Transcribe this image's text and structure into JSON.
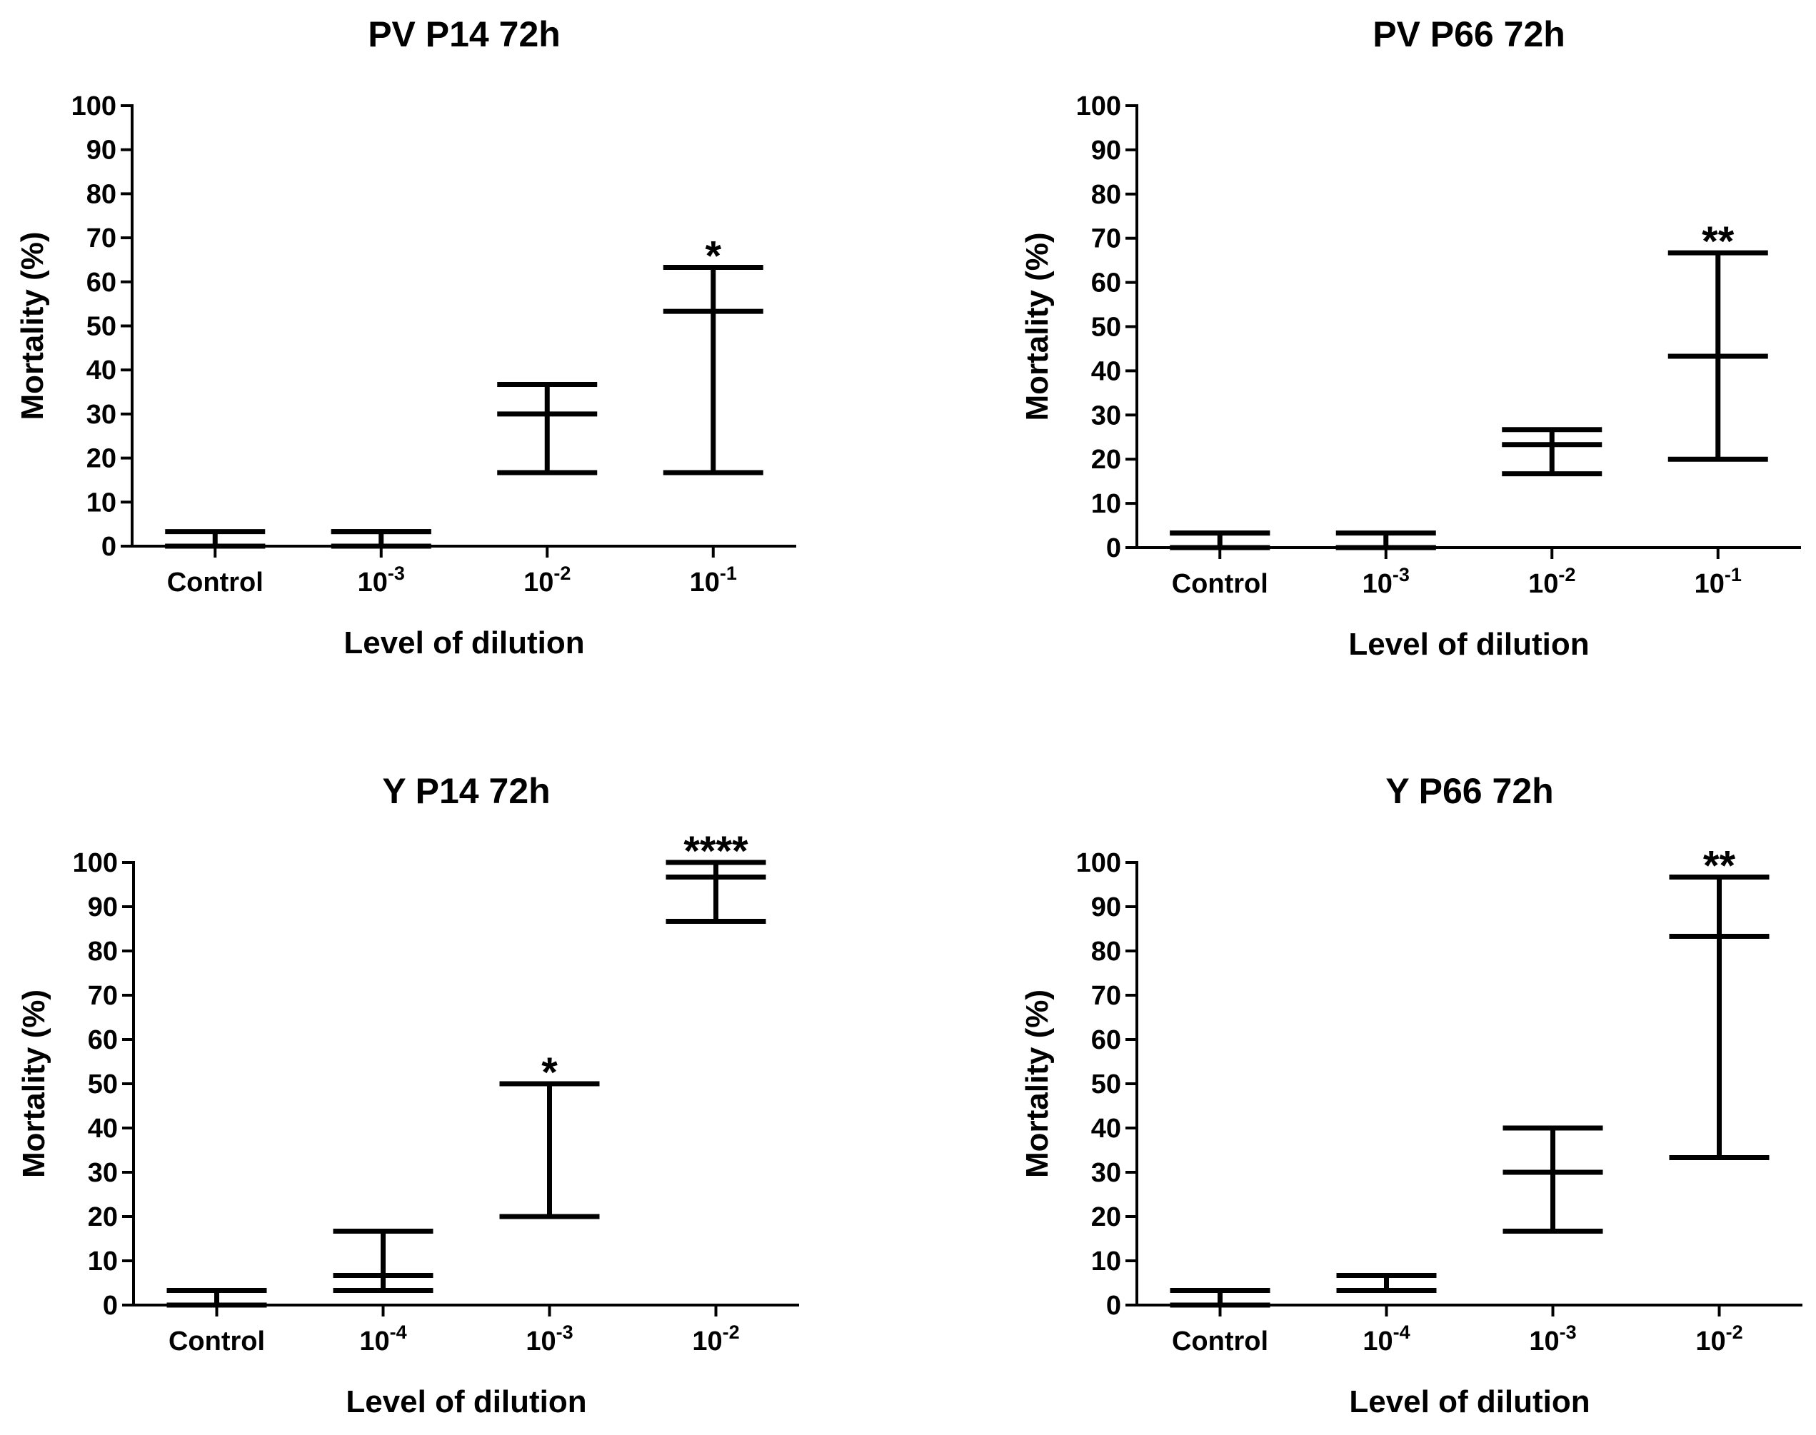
{
  "chart_data": [
    {
      "type": "errorbar",
      "title": "PV P14 72h",
      "xlabel": "Level of dilution",
      "ylabel": "Mortality (%)",
      "ylim": [
        0,
        100
      ],
      "yticks": [
        "0",
        "10",
        "20",
        "30",
        "40",
        "50",
        "60",
        "70",
        "80",
        "90",
        "100"
      ],
      "categories": [
        {
          "base": "Control",
          "exp": ""
        },
        {
          "base": "10",
          "exp": "-3"
        },
        {
          "base": "10",
          "exp": "-2"
        },
        {
          "base": "10",
          "exp": "-1"
        }
      ],
      "median": [
        0,
        3.3,
        30,
        53.3
      ],
      "low": [
        0,
        0,
        16.7,
        16.7
      ],
      "high": [
        3.3,
        3.3,
        36.7,
        63.3
      ],
      "significance": [
        "",
        "",
        "",
        "*"
      ]
    },
    {
      "type": "errorbar",
      "title": "PV P66 72h",
      "xlabel": "Level of dilution",
      "ylabel": "Mortality (%)",
      "ylim": [
        0,
        100
      ],
      "yticks": [
        "0",
        "10",
        "20",
        "30",
        "40",
        "50",
        "60",
        "70",
        "80",
        "90",
        "100"
      ],
      "categories": [
        {
          "base": "Control",
          "exp": ""
        },
        {
          "base": "10",
          "exp": "-3"
        },
        {
          "base": "10",
          "exp": "-2"
        },
        {
          "base": "10",
          "exp": "-1"
        }
      ],
      "median": [
        3.3,
        0,
        23.3,
        43.3
      ],
      "low": [
        0,
        0,
        16.7,
        20
      ],
      "high": [
        3.3,
        3.3,
        26.7,
        66.7
      ],
      "significance": [
        "",
        "",
        "",
        "**"
      ]
    },
    {
      "type": "errorbar",
      "title": "Y P14 72h",
      "xlabel": "Level of dilution",
      "ylabel": "Mortality (%)",
      "ylim": [
        0,
        100
      ],
      "yticks": [
        "0",
        "10",
        "20",
        "30",
        "40",
        "50",
        "60",
        "70",
        "80",
        "90",
        "100"
      ],
      "categories": [
        {
          "base": "Control",
          "exp": ""
        },
        {
          "base": "10",
          "exp": "-4"
        },
        {
          "base": "10",
          "exp": "-3"
        },
        {
          "base": "10",
          "exp": "-2"
        }
      ],
      "median": [
        3.3,
        6.7,
        20,
        96.7
      ],
      "low": [
        0,
        3.3,
        20,
        86.7
      ],
      "high": [
        3.3,
        16.7,
        50,
        100
      ],
      "significance": [
        "",
        "",
        "*",
        "****"
      ]
    },
    {
      "type": "errorbar",
      "title": "Y P66 72h",
      "xlabel": "Level of dilution",
      "ylabel": "Mortality (%)",
      "ylim": [
        0,
        100
      ],
      "yticks": [
        "0",
        "10",
        "20",
        "30",
        "40",
        "50",
        "60",
        "70",
        "80",
        "90",
        "100"
      ],
      "categories": [
        {
          "base": "Control",
          "exp": ""
        },
        {
          "base": "10",
          "exp": "-4"
        },
        {
          "base": "10",
          "exp": "-3"
        },
        {
          "base": "10",
          "exp": "-2"
        }
      ],
      "median": [
        3.3,
        3.3,
        30,
        83.3
      ],
      "low": [
        0,
        3.3,
        16.7,
        33.3
      ],
      "high": [
        3.3,
        6.7,
        40,
        96.7
      ],
      "significance": [
        "",
        "",
        "",
        "**"
      ]
    }
  ]
}
